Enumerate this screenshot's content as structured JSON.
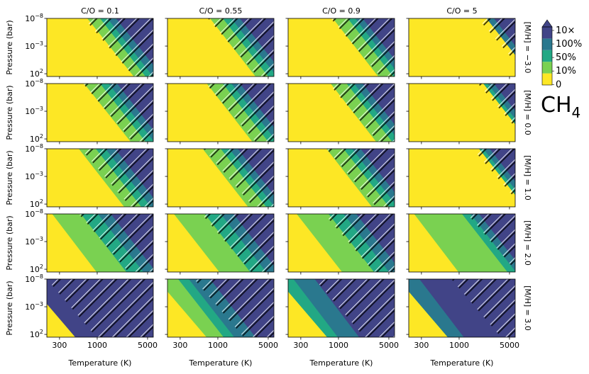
{
  "chart_data": {
    "type": "heatmap",
    "species": "CH",
    "species_subscript": "4",
    "columns": [
      "C/O = 0.1",
      "C/O = 0.55",
      "C/O = 0.9",
      "C/O = 5"
    ],
    "rows": [
      "[M/H] = −3.0",
      "[M/H] = 0.0",
      "[M/H] = 1.0",
      "[M/H] = 2.0",
      "[M/H] = 3.0"
    ],
    "xlabel": "Temperature (K)",
    "ylabel": "Pressure (bar)",
    "x_scale": "log",
    "y_scale": "log",
    "xlim": [
      200,
      6000
    ],
    "ylim_log10": [
      2.5,
      -8
    ],
    "x_ticks": [
      {
        "value": 300,
        "label": "300"
      },
      {
        "value": 1000,
        "label": "1000"
      },
      {
        "value": 5000,
        "label": "5000"
      }
    ],
    "y_ticks": [
      {
        "exp": -8,
        "base": "10",
        "sup": "−8"
      },
      {
        "exp": -3,
        "base": "10",
        "sup": "−3"
      },
      {
        "exp": 2,
        "base": "10",
        "sup": "2"
      }
    ],
    "colorbar": {
      "levels": [
        "0",
        "10%",
        "50%",
        "100%",
        "10×"
      ],
      "colors": [
        "#fde725",
        "#7ad151",
        "#22a884",
        "#2a788e",
        "#414487"
      ],
      "extend": "max"
    },
    "hatch_region": "hatched diagonal lines in high-temperature region",
    "panels": [
      [
        {
          "bands": [
            [
              1.0,
              0.95
            ],
            [
              0.38,
              0.35
            ],
            [
              0.5,
              0.46
            ],
            [
              0.57,
              0.53
            ],
            [
              0.65,
              0.62
            ],
            [
              0.75,
              0.72
            ]
          ],
          "hatch_start": 0.35
        },
        {
          "bands": [
            [
              1.0,
              0.95
            ],
            [
              0.4,
              0.36
            ],
            [
              0.52,
              0.48
            ],
            [
              0.6,
              0.56
            ],
            [
              0.68,
              0.64
            ],
            [
              0.78,
              0.74
            ]
          ],
          "hatch_start": 0.38
        },
        {
          "bands": [
            [
              1.0,
              0.95
            ],
            [
              0.42,
              0.38
            ],
            [
              0.56,
              0.52
            ],
            [
              0.63,
              0.59
            ],
            [
              0.7,
              0.66
            ],
            [
              0.8,
              0.76
            ]
          ],
          "hatch_start": 0.4
        },
        {
          "bands": [
            [
              1.0,
              0.95
            ],
            [
              1.1,
              1.1
            ],
            [
              1.1,
              1.1
            ],
            [
              0.73,
              0.69
            ],
            [
              0.8,
              0.76
            ],
            [
              0.86,
              0.82
            ]
          ],
          "hatch_start": 0.65
        }
      ],
      [
        {
          "bands": [
            [
              1.0,
              0.95
            ],
            [
              0.35,
              0.32
            ],
            [
              0.5,
              0.46
            ],
            [
              0.58,
              0.54
            ],
            [
              0.66,
              0.62
            ],
            [
              0.76,
              0.72
            ]
          ],
          "hatch_start": 0.34
        },
        {
          "bands": [
            [
              1.0,
              0.95
            ],
            [
              0.37,
              0.33
            ],
            [
              0.52,
              0.48
            ],
            [
              0.6,
              0.56
            ],
            [
              0.68,
              0.64
            ],
            [
              0.78,
              0.74
            ]
          ],
          "hatch_start": 0.36
        },
        {
          "bands": [
            [
              1.0,
              0.95
            ],
            [
              0.4,
              0.36
            ],
            [
              0.55,
              0.51
            ],
            [
              0.62,
              0.58
            ],
            [
              0.7,
              0.66
            ],
            [
              0.8,
              0.76
            ]
          ],
          "hatch_start": 0.38
        },
        {
          "bands": [
            [
              1.0,
              0.95
            ],
            [
              1.1,
              1.1
            ],
            [
              0.7,
              0.66
            ],
            [
              0.74,
              0.7
            ],
            [
              0.8,
              0.76
            ],
            [
              0.86,
              0.82
            ]
          ],
          "hatch_start": 0.65
        }
      ],
      [
        {
          "bands": [
            [
              1.0,
              0.95
            ],
            [
              0.3,
              0.26
            ],
            [
              0.46,
              0.42
            ],
            [
              0.55,
              0.51
            ],
            [
              0.64,
              0.6
            ],
            [
              0.74,
              0.7
            ]
          ],
          "hatch_start": 0.32
        },
        {
          "bands": [
            [
              1.0,
              0.95
            ],
            [
              0.33,
              0.29
            ],
            [
              0.5,
              0.46
            ],
            [
              0.58,
              0.54
            ],
            [
              0.66,
              0.62
            ],
            [
              0.76,
              0.72
            ]
          ],
          "hatch_start": 0.34
        },
        {
          "bands": [
            [
              1.0,
              0.95
            ],
            [
              0.36,
              0.32
            ],
            [
              0.52,
              0.48
            ],
            [
              0.6,
              0.56
            ],
            [
              0.68,
              0.64
            ],
            [
              0.78,
              0.74
            ]
          ],
          "hatch_start": 0.36
        },
        {
          "bands": [
            [
              1.0,
              0.95
            ],
            [
              1.1,
              1.1
            ],
            [
              0.66,
              0.62
            ],
            [
              0.7,
              0.66
            ],
            [
              0.76,
              0.72
            ],
            [
              0.82,
              0.78
            ]
          ],
          "hatch_start": 0.6
        }
      ],
      [
        {
          "bands": [
            [
              1.0,
              0.95
            ],
            [
              0.05,
              0.0
            ],
            [
              0.32,
              0.28
            ],
            [
              0.48,
              0.44
            ],
            [
              0.6,
              0.56
            ],
            [
              0.72,
              0.68
            ]
          ],
          "hatch_start": 0.3
        },
        {
          "bands": [
            [
              1.0,
              0.95
            ],
            [
              0.06,
              0.02
            ],
            [
              0.35,
              0.31
            ],
            [
              0.5,
              0.46
            ],
            [
              0.62,
              0.58
            ],
            [
              0.74,
              0.7
            ]
          ],
          "hatch_start": 0.32
        },
        {
          "bands": [
            [
              1.0,
              0.95
            ],
            [
              0.08,
              0.04
            ],
            [
              0.38,
              0.34
            ],
            [
              0.52,
              0.48
            ],
            [
              0.64,
              0.6
            ],
            [
              0.76,
              0.72
            ]
          ],
          "hatch_start": 0.34
        },
        {
          "bands": [
            [
              1.0,
              0.95
            ],
            [
              0.05,
              0.0
            ],
            [
              0.5,
              0.46
            ],
            [
              0.58,
              0.54
            ],
            [
              0.66,
              0.62
            ],
            [
              0.78,
              0.74
            ]
          ],
          "hatch_start": 0.55
        }
      ],
      [
        {
          "bands": [
            [
              1.0,
              0.95
            ],
            [
              -0.1,
              -0.1
            ],
            [
              -0.1,
              -0.1
            ],
            [
              -0.1,
              -0.1
            ],
            [
              -0.1,
              -0.1
            ],
            [
              -0.2,
              -0.2
            ]
          ],
          "hatch_start": 0.0
        },
        {
          "bands": [
            [
              1.0,
              0.95
            ],
            [
              -0.1,
              -0.1
            ],
            [
              0.1,
              0.06
            ],
            [
              0.2,
              0.16
            ],
            [
              0.4,
              0.36
            ],
            [
              0.6,
              0.56
            ]
          ],
          "hatch_start": 0.25
        },
        {
          "bands": [
            [
              1.0,
              0.95
            ],
            [
              -0.1,
              -0.1
            ],
            [
              -0.1,
              -0.1
            ],
            [
              0.05,
              0.0
            ],
            [
              0.25,
              0.2
            ],
            [
              0.5,
              0.45
            ]
          ],
          "hatch_start": 0.25
        },
        {
          "bands": [
            [
              1.0,
              0.95
            ],
            [
              -0.1,
              -0.1
            ],
            [
              -0.1,
              -0.1
            ],
            [
              -0.1,
              -0.1
            ],
            [
              0.1,
              0.05
            ],
            [
              0.55,
              0.5
            ]
          ],
          "hatch_start": 0.4
        }
      ]
    ]
  }
}
